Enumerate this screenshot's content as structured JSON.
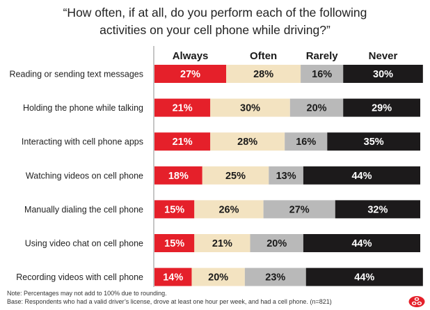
{
  "title_lines": [
    "“How often, if at all, do you perform each of the following",
    "activities on your cell phone while driving?”"
  ],
  "notes": {
    "note": "Note: Percentages may not add to 100% due to rounding.",
    "base": "Base: Respondents who had a valid driver’s license, drove at least one hour per week, and had a cell phone. (n=821)"
  },
  "colors": {
    "Always": "#e5202a",
    "Often": "#f3e3c1",
    "Rarely": "#b9b9b9",
    "Never": "#1c1a1b",
    "divider": "#8c8c8c"
  },
  "logo": {
    "icon": "three-ovals-logo-icon",
    "color": "#e5202a"
  },
  "chart_data": {
    "type": "bar",
    "orientation": "horizontal",
    "stacked": true,
    "legend_position": "top",
    "categories": [
      "Reading or sending text messages",
      "Holding the phone while talking",
      "Interacting with cell phone apps",
      "Watching videos on cell phone",
      "Manually dialing the cell phone",
      "Using video chat on cell phone",
      "Recording videos with cell phone"
    ],
    "series": [
      {
        "name": "Always",
        "values": [
          27,
          21,
          21,
          18,
          15,
          15,
          14
        ]
      },
      {
        "name": "Often",
        "values": [
          28,
          30,
          28,
          25,
          26,
          21,
          20
        ]
      },
      {
        "name": "Rarely",
        "values": [
          16,
          20,
          16,
          13,
          27,
          20,
          23
        ]
      },
      {
        "name": "Never",
        "values": [
          30,
          29,
          35,
          44,
          32,
          44,
          44
        ]
      }
    ],
    "value_suffix": "%"
  }
}
